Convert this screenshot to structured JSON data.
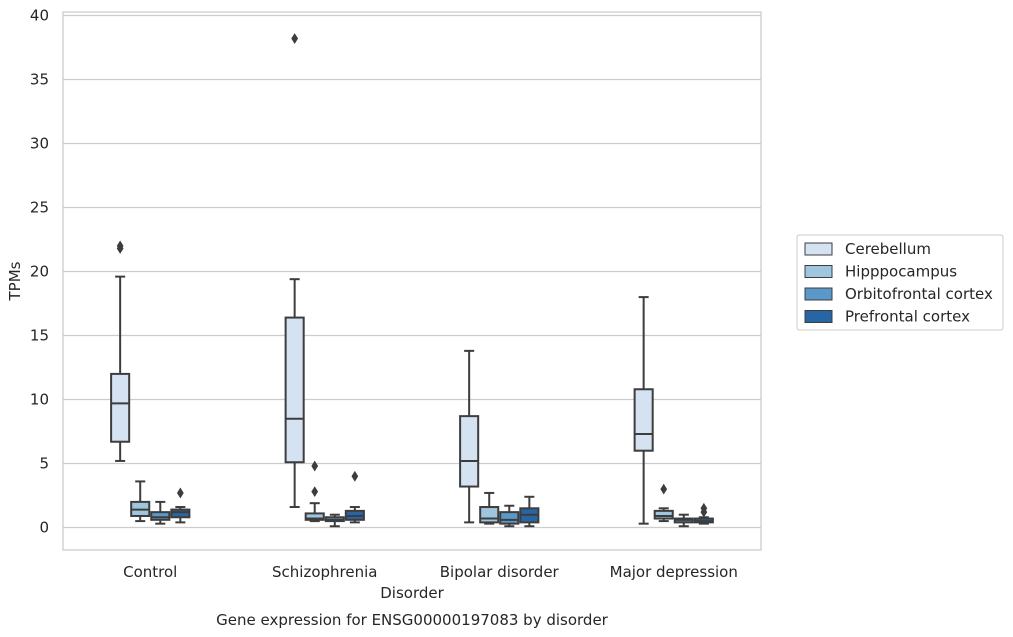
{
  "chart_data": {
    "type": "box",
    "title": "",
    "caption": "Gene expression for ENSG00000197083 by disorder",
    "xlabel": "Disorder",
    "ylabel": "TPMs",
    "ylim": [
      -1.8,
      40.3
    ],
    "yticks": [
      0,
      5,
      10,
      15,
      20,
      25,
      30,
      35,
      40
    ],
    "grid": true,
    "legend_position": "right",
    "categories": [
      "Control",
      "Schizophrenia",
      "Bipolar disorder",
      "Major depression"
    ],
    "series": [
      {
        "name": "Cerebellum",
        "color": "#d4e2f1",
        "boxes": [
          {
            "whislo": 5.2,
            "q1": 6.7,
            "med": 9.7,
            "q3": 12.0,
            "whishi": 19.6,
            "fliers": [
              21.8,
              22.0
            ]
          },
          {
            "whislo": 1.6,
            "q1": 5.1,
            "med": 8.5,
            "q3": 16.4,
            "whishi": 19.4,
            "fliers": [
              38.2
            ]
          },
          {
            "whislo": 0.4,
            "q1": 3.2,
            "med": 5.2,
            "q3": 8.7,
            "whishi": 13.8,
            "fliers": []
          },
          {
            "whislo": 0.3,
            "q1": 6.0,
            "med": 7.3,
            "q3": 10.8,
            "whishi": 18.0,
            "fliers": []
          }
        ]
      },
      {
        "name": "Hipppocampus",
        "color": "#a0c5df",
        "boxes": [
          {
            "whislo": 0.5,
            "q1": 0.9,
            "med": 1.4,
            "q3": 2.0,
            "whishi": 3.6,
            "fliers": []
          },
          {
            "whislo": 0.5,
            "q1": 0.6,
            "med": 0.7,
            "q3": 1.1,
            "whishi": 1.9,
            "fliers": [
              2.8,
              4.8
            ]
          },
          {
            "whislo": 0.3,
            "q1": 0.4,
            "med": 0.7,
            "q3": 1.6,
            "whishi": 2.7,
            "fliers": []
          },
          {
            "whislo": 0.5,
            "q1": 0.7,
            "med": 0.9,
            "q3": 1.3,
            "whishi": 1.5,
            "fliers": [
              3.0
            ]
          }
        ]
      },
      {
        "name": "Orbitofrontal cortex",
        "color": "#5a98c9",
        "boxes": [
          {
            "whislo": 0.3,
            "q1": 0.6,
            "med": 0.8,
            "q3": 1.2,
            "whishi": 2.0,
            "fliers": []
          },
          {
            "whislo": 0.1,
            "q1": 0.5,
            "med": 0.6,
            "q3": 0.8,
            "whishi": 1.0,
            "fliers": []
          },
          {
            "whislo": 0.1,
            "q1": 0.3,
            "med": 0.6,
            "q3": 1.2,
            "whishi": 1.7,
            "fliers": []
          },
          {
            "whislo": 0.1,
            "q1": 0.4,
            "med": 0.6,
            "q3": 0.7,
            "whishi": 1.0,
            "fliers": []
          }
        ]
      },
      {
        "name": "Prefrontal cortex",
        "color": "#2765a5",
        "boxes": [
          {
            "whislo": 0.4,
            "q1": 0.8,
            "med": 1.2,
            "q3": 1.4,
            "whishi": 1.6,
            "fliers": [
              2.7
            ]
          },
          {
            "whislo": 0.4,
            "q1": 0.6,
            "med": 0.9,
            "q3": 1.3,
            "whishi": 1.6,
            "fliers": [
              4.0
            ]
          },
          {
            "whislo": 0.1,
            "q1": 0.4,
            "med": 1.0,
            "q3": 1.5,
            "whishi": 2.4,
            "fliers": []
          },
          {
            "whislo": 0.3,
            "q1": 0.4,
            "med": 0.5,
            "q3": 0.7,
            "whishi": 0.8,
            "fliers": [
              1.2,
              1.5
            ]
          }
        ]
      }
    ]
  }
}
